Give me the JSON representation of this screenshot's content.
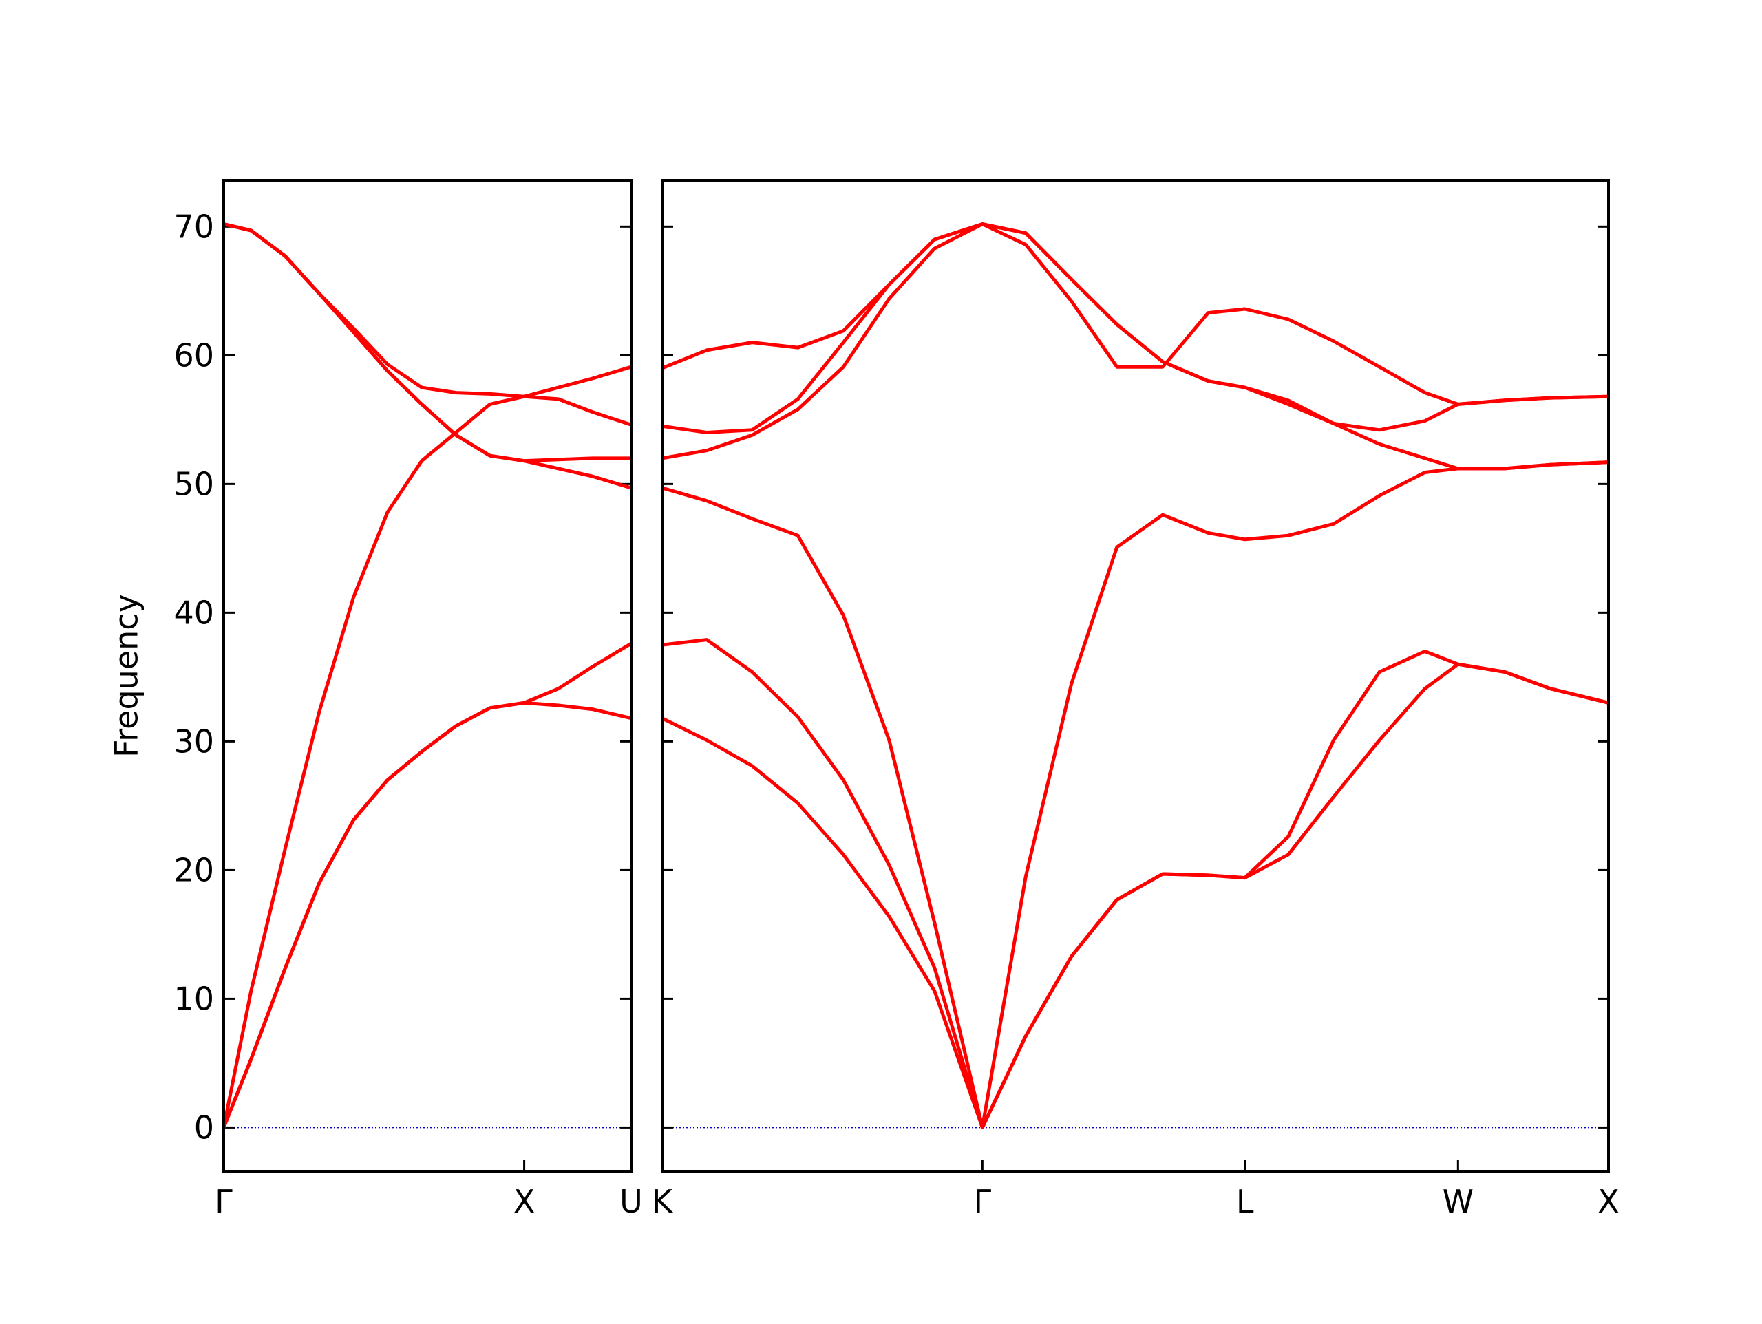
{
  "chart_data": [
    {
      "type": "line",
      "ylabel": "Frequency",
      "ytick_labels": true,
      "x": [
        0,
        0.091,
        0.205,
        0.318,
        0.432,
        0.545,
        0.659,
        0.773,
        0.886,
        1.0,
        1.114,
        1.227,
        1.356
      ],
      "series": [
        {
          "color": "#ff0000",
          "values": [
            0,
            5.3,
            12.4,
            19,
            23.9,
            27,
            29.2,
            31.2,
            32.6,
            33,
            32.8,
            32.5,
            31.8
          ]
        },
        {
          "color": "#ff0000",
          "values": [
            0,
            5.3,
            12.4,
            19,
            23.9,
            27,
            29.2,
            31.2,
            32.6,
            33,
            34.1,
            35.8,
            37.6
          ]
        },
        {
          "color": "#ff0000",
          "values": [
            0,
            10.6,
            21.7,
            32.3,
            41.2,
            47.8,
            51.8,
            54,
            56.2,
            56.8,
            56.6,
            55.6,
            54.6
          ]
        },
        {
          "color": "#ff0000",
          "values": [
            70.2,
            69.7,
            67.7,
            64.8,
            61.8,
            58.8,
            56.2,
            53.8,
            52.2,
            51.8,
            51.2,
            50.6,
            49.7
          ]
        },
        {
          "color": "#ff0000",
          "values": [
            70.2,
            69.7,
            67.7,
            64.8,
            61.8,
            58.8,
            56.2,
            53.8,
            52.2,
            51.8,
            51.9,
            52,
            52
          ]
        },
        {
          "color": "#ff0000",
          "values": [
            70.2,
            69.7,
            67.7,
            64.8,
            62.1,
            59.3,
            57.5,
            57.1,
            57,
            56.8,
            57.5,
            58.2,
            59.1
          ]
        }
      ],
      "xlim": [
        0,
        1.356
      ],
      "ylim": [
        -3.4,
        73.6
      ],
      "xticks": [
        {
          "value": 0,
          "label": "Γ"
        },
        {
          "value": 1.0,
          "label": "X"
        },
        {
          "value": 1.356,
          "label": "U"
        }
      ],
      "yticks": [
        0,
        10,
        20,
        30,
        40,
        50,
        60,
        70
      ],
      "hline": 0,
      "hline_color": "#0000cc"
    },
    {
      "type": "line",
      "ytick_labels": false,
      "x": [
        0,
        0.148,
        0.299,
        0.451,
        0.602,
        0.754,
        0.905,
        1.064,
        1.208,
        1.36,
        1.511,
        1.663,
        1.814,
        1.936,
        2.08,
        2.231,
        2.383,
        2.534,
        2.644,
        2.799,
        2.951,
        3.144
      ],
      "series": [
        {
          "color": "#ff0000",
          "values": [
            31.8,
            30.1,
            28.1,
            25.2,
            21.2,
            16.4,
            10.6,
            0,
            7.1,
            13.3,
            17.7,
            19.7,
            19.6,
            19.4,
            21.2,
            25.7,
            30.1,
            34.1,
            36,
            35.4,
            34.1,
            33
          ]
        },
        {
          "color": "#ff0000",
          "values": [
            37.5,
            37.9,
            35.4,
            31.9,
            27,
            20.4,
            12.4,
            0,
            7.1,
            13.3,
            17.7,
            19.7,
            19.6,
            19.4,
            22.6,
            30.1,
            35.4,
            37,
            36,
            35.4,
            34.1,
            33
          ]
        },
        {
          "color": "#ff0000",
          "values": [
            49.7,
            48.7,
            47.3,
            46,
            39.8,
            30.1,
            15.9,
            0,
            19.5,
            34.5,
            45.1,
            47.6,
            46.2,
            45.7,
            46,
            46.9,
            49.1,
            50.9,
            51.2,
            51.2,
            51.5,
            51.7
          ]
        },
        {
          "color": "#ff0000",
          "values": [
            52,
            52.6,
            53.8,
            55.8,
            59.1,
            64.4,
            68.3,
            70.2,
            68.6,
            64.2,
            59.1,
            59.1,
            63.3,
            63.6,
            62.8,
            61.1,
            59.1,
            57.1,
            56.2,
            56.5,
            56.7,
            56.8
          ]
        },
        {
          "color": "#ff0000",
          "values": [
            54.5,
            54,
            54.2,
            56.6,
            61,
            65.5,
            69,
            70.2,
            69.5,
            65.9,
            62.4,
            59.5,
            58,
            57.5,
            56.2,
            54.7,
            54.2,
            54.9,
            56.2,
            56.5,
            56.7,
            56.8
          ]
        },
        {
          "color": "#ff0000",
          "values": [
            59,
            60.4,
            61,
            60.6,
            61.9,
            65.5,
            69,
            70.2,
            69.5,
            65.9,
            62.4,
            59.5,
            58,
            57.5,
            56.5,
            54.7,
            53.1,
            52,
            51.2,
            51.2,
            51.5,
            51.7
          ]
        }
      ],
      "xlim": [
        0,
        3.144
      ],
      "ylim": [
        -3.4,
        73.6
      ],
      "xticks": [
        {
          "value": 0,
          "label": "K"
        },
        {
          "value": 1.064,
          "label": "Γ"
        },
        {
          "value": 1.936,
          "label": "L"
        },
        {
          "value": 2.644,
          "label": "W"
        },
        {
          "value": 3.144,
          "label": "X"
        }
      ],
      "yticks": [
        0,
        10,
        20,
        30,
        40,
        50,
        60,
        70
      ],
      "hline": 0,
      "hline_color": "#0000cc"
    }
  ]
}
